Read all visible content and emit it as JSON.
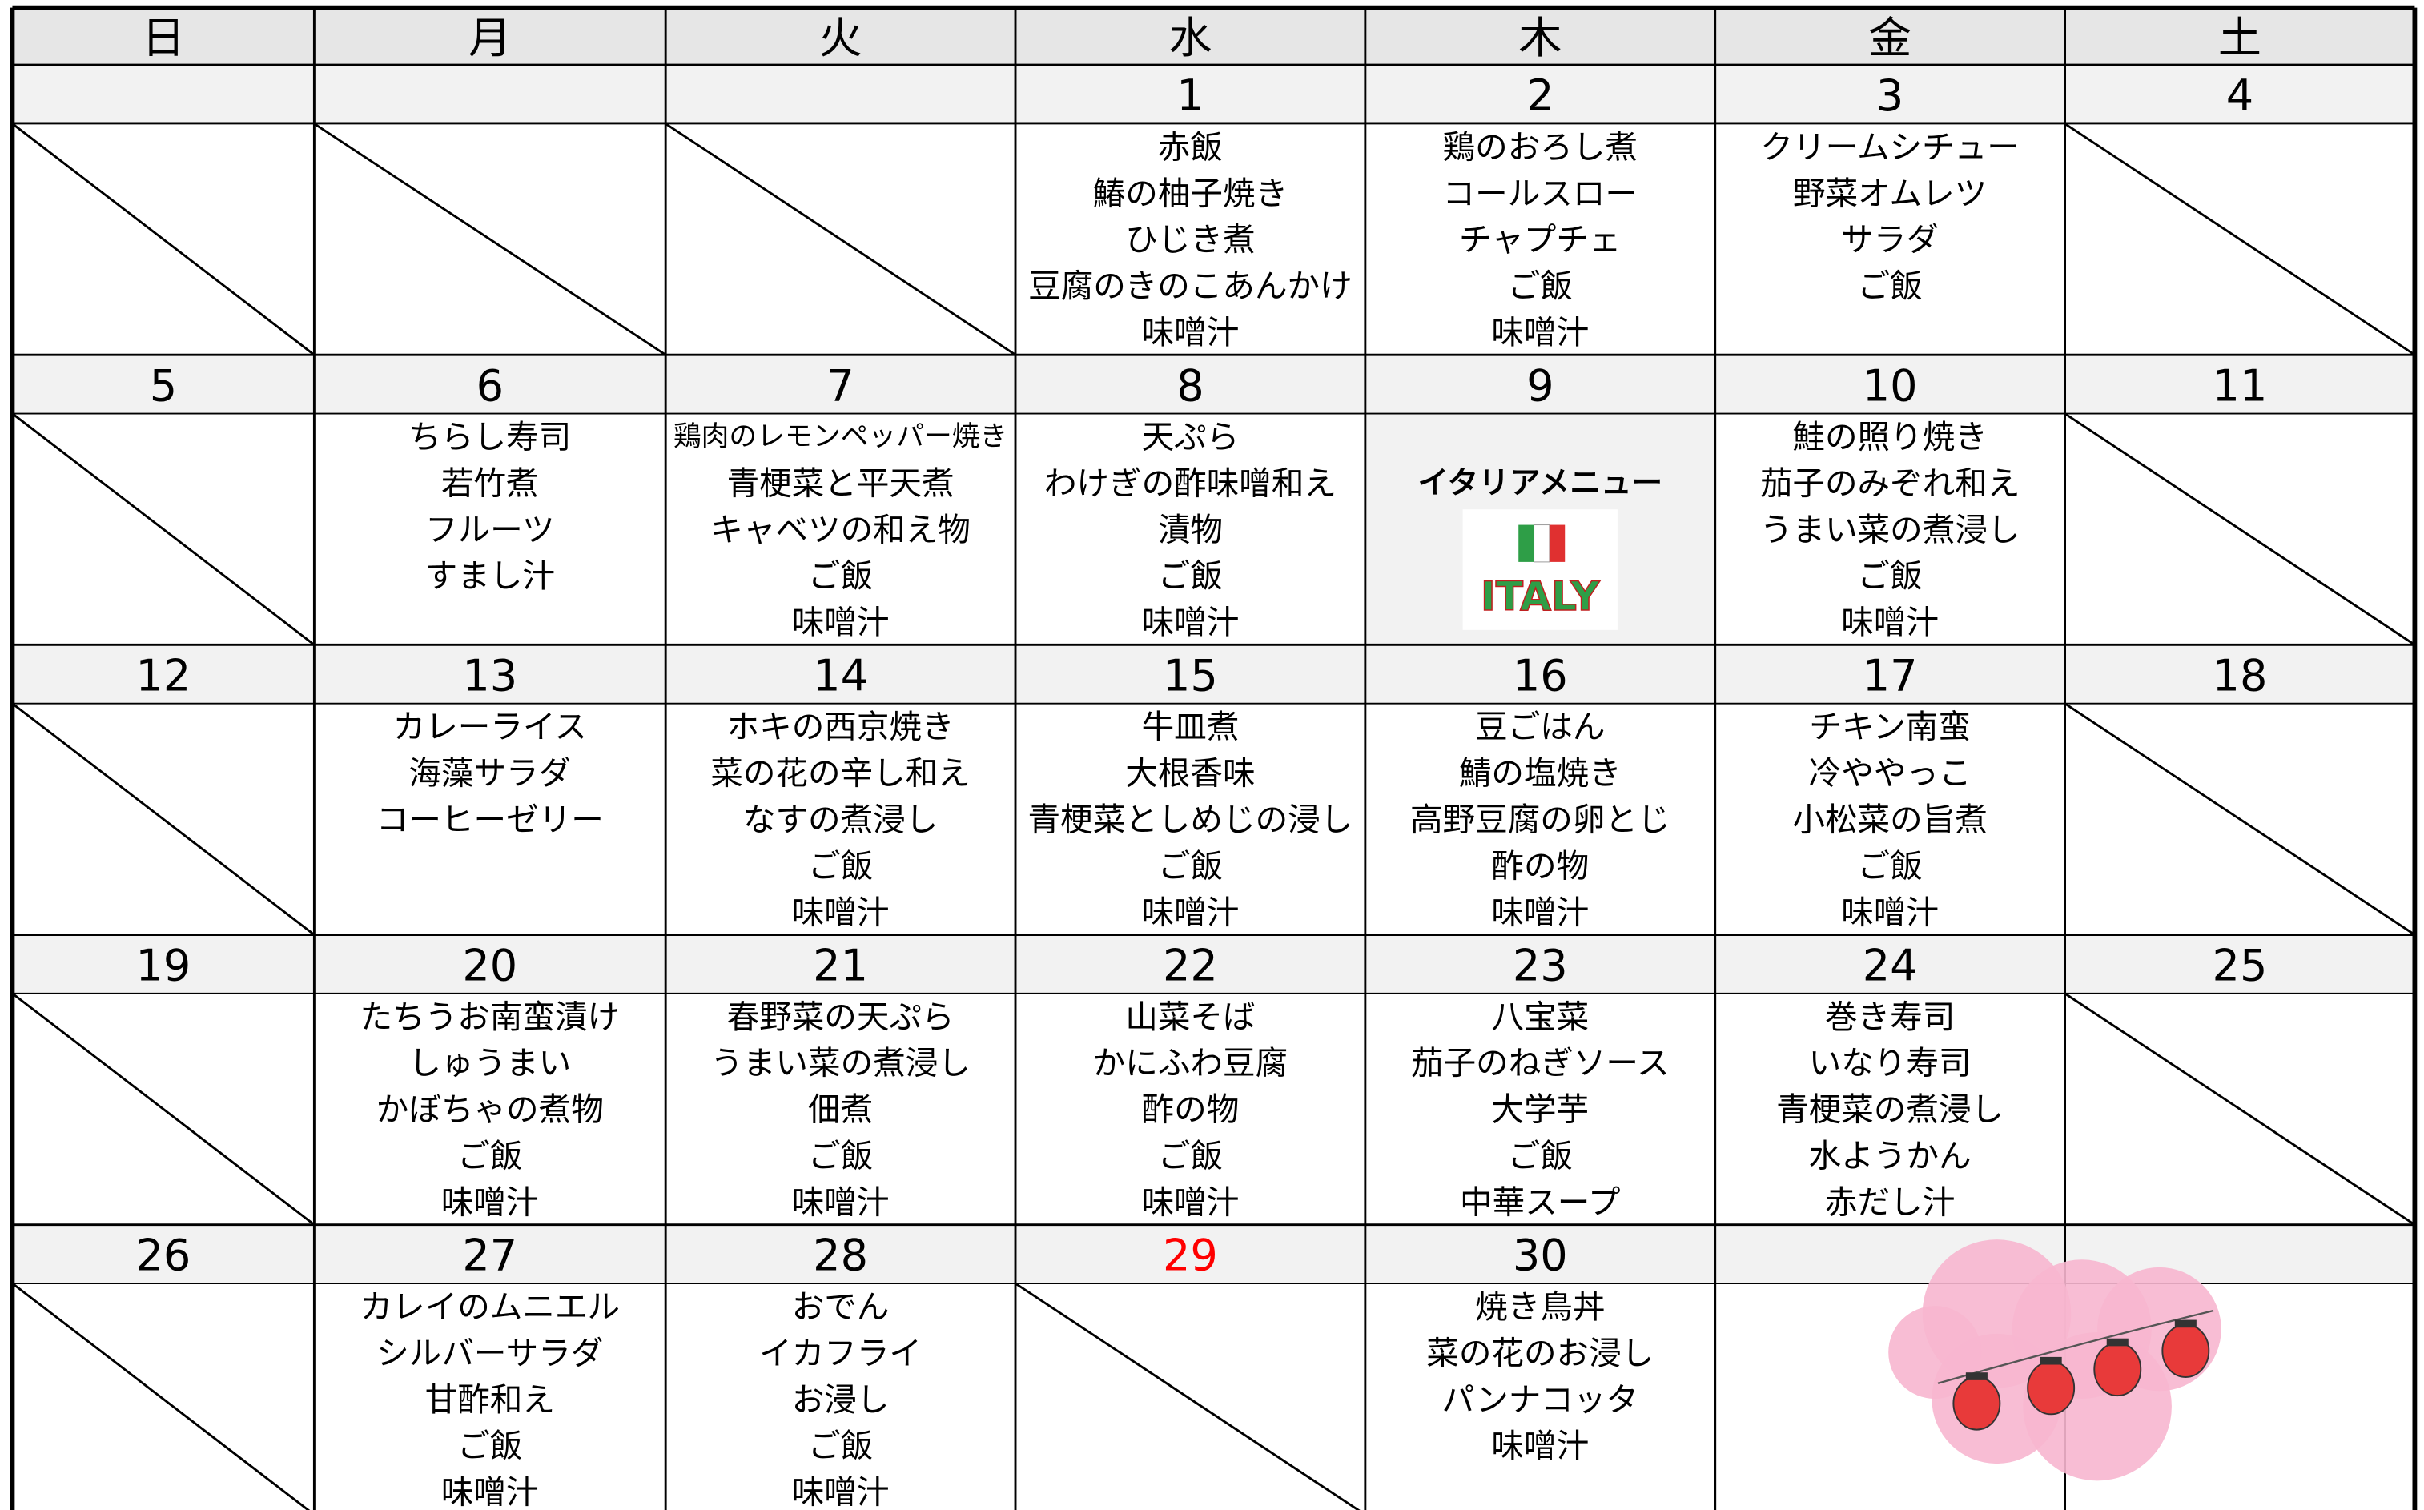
{
  "weekdays": [
    "日",
    "月",
    "火",
    "水",
    "木",
    "金",
    "土"
  ],
  "weeks": [
    [
      {
        "date": null
      },
      {
        "date": null
      },
      {
        "date": null
      },
      {
        "date": 1,
        "menu": [
          "赤飯",
          "鰆の柚子焼き",
          "ひじき煮",
          "豆腐のきのこあんかけ",
          "味噌汁"
        ]
      },
      {
        "date": 2,
        "menu": [
          "鶏のおろし煮",
          "コールスロー",
          "チャプチェ",
          "ご飯",
          "味噌汁"
        ]
      },
      {
        "date": 3,
        "menu": [
          "クリームシチュー",
          "野菜オムレツ",
          "サラダ",
          "ご飯"
        ]
      },
      {
        "date": 4
      }
    ],
    [
      {
        "date": 5
      },
      {
        "date": 6,
        "menu": [
          "ちらし寿司",
          "若竹煮",
          "フルーツ",
          "すまし汁"
        ]
      },
      {
        "date": 7,
        "menu": [
          "鶏肉のレモンペッパー焼き",
          "青梗菜と平天煮",
          "キャベツの和え物",
          "ご飯",
          "味噌汁"
        ]
      },
      {
        "date": 8,
        "menu": [
          "天ぷら",
          "わけぎの酢味噌和え",
          "漬物",
          "ご飯",
          "味噌汁"
        ]
      },
      {
        "date": 9,
        "title": "イタリアメニュー",
        "image_text": "ITALY"
      },
      {
        "date": 10,
        "menu": [
          "鮭の照り焼き",
          "茄子のみぞれ和え",
          "うまい菜の煮浸し",
          "ご飯",
          "味噌汁"
        ]
      },
      {
        "date": 11
      }
    ],
    [
      {
        "date": 12
      },
      {
        "date": 13,
        "menu": [
          "カレーライス",
          "海藻サラダ",
          "コーヒーゼリー"
        ]
      },
      {
        "date": 14,
        "menu": [
          "ホキの西京焼き",
          "菜の花の辛し和え",
          "なすの煮浸し",
          "ご飯",
          "味噌汁"
        ]
      },
      {
        "date": 15,
        "menu": [
          "牛皿煮",
          "大根香味",
          "青梗菜としめじの浸し",
          "ご飯",
          "味噌汁"
        ]
      },
      {
        "date": 16,
        "menu": [
          "豆ごはん",
          "鯖の塩焼き",
          "高野豆腐の卵とじ",
          "酢の物",
          "味噌汁"
        ]
      },
      {
        "date": 17,
        "menu": [
          "チキン南蛮",
          "冷ややっこ",
          "小松菜の旨煮",
          "ご飯",
          "味噌汁"
        ]
      },
      {
        "date": 18
      }
    ],
    [
      {
        "date": 19
      },
      {
        "date": 20,
        "menu": [
          "たちうお南蛮漬け",
          "しゅうまい",
          "かぼちゃの煮物",
          "ご飯",
          "味噌汁"
        ]
      },
      {
        "date": 21,
        "menu": [
          "春野菜の天ぷら",
          "うまい菜の煮浸し",
          "佃煮",
          "ご飯",
          "味噌汁"
        ]
      },
      {
        "date": 22,
        "menu": [
          "山菜そば",
          "かにふわ豆腐",
          "酢の物",
          "ご飯",
          "味噌汁"
        ]
      },
      {
        "date": 23,
        "menu": [
          "八宝菜",
          "茄子のねぎソース",
          "大学芋",
          "ご飯",
          "中華スープ"
        ]
      },
      {
        "date": 24,
        "menu": [
          "巻き寿司",
          "いなり寿司",
          "青梗菜の煮浸し",
          "水ようかん",
          "赤だし汁"
        ]
      },
      {
        "date": 25
      }
    ],
    [
      {
        "date": 26
      },
      {
        "date": 27,
        "menu": [
          "カレイのムニエル",
          "シルバーサラダ",
          "甘酢和え",
          "ご飯",
          "味噌汁"
        ]
      },
      {
        "date": 28,
        "menu": [
          "おでん",
          "イカフライ",
          "お浸し",
          "ご飯",
          "味噌汁"
        ]
      },
      {
        "date": 29,
        "color": "#ff0000"
      },
      {
        "date": 30,
        "menu": [
          "焼き鳥丼",
          "菜の花のお浸し",
          "パンナコッタ",
          "味噌汁"
        ]
      },
      {
        "date": null
      },
      {
        "date": null
      }
    ]
  ]
}
